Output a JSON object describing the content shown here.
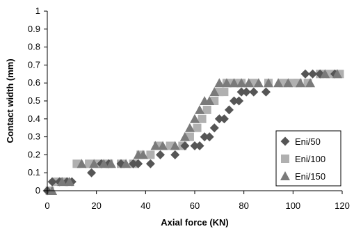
{
  "chart_data": {
    "type": "scatter",
    "xlabel": "Axial force (KN)",
    "ylabel": "Contact width (mm)",
    "xlim": [
      0,
      120
    ],
    "ylim": [
      0,
      1
    ],
    "xticks": [
      0,
      20,
      40,
      60,
      80,
      100,
      120
    ],
    "yticks": [
      0,
      0.1,
      0.2,
      0.3,
      0.4,
      0.5,
      0.6,
      0.7,
      0.8,
      0.9,
      1
    ],
    "xtick_labels": [
      "0",
      "20",
      "40",
      "60",
      "80",
      "100",
      "120"
    ],
    "ytick_labels": [
      "0",
      "0.1",
      "0.2",
      "0.3",
      "0.4",
      "0.5",
      "0.6",
      "0.7",
      "0.8",
      "0.9",
      "1"
    ],
    "grid": false,
    "legend_position": "right",
    "series": [
      {
        "name": "Eni/50",
        "marker": "diamond",
        "color": "#555555",
        "points": [
          [
            0,
            0
          ],
          [
            2,
            0.05
          ],
          [
            5,
            0.05
          ],
          [
            8,
            0.05
          ],
          [
            10,
            0.05
          ],
          [
            18,
            0.1
          ],
          [
            22,
            0.15
          ],
          [
            25,
            0.15
          ],
          [
            30,
            0.15
          ],
          [
            35,
            0.15
          ],
          [
            37,
            0.15
          ],
          [
            42,
            0.15
          ],
          [
            46,
            0.2
          ],
          [
            52,
            0.2
          ],
          [
            56,
            0.25
          ],
          [
            60,
            0.25
          ],
          [
            62,
            0.25
          ],
          [
            64,
            0.3
          ],
          [
            66,
            0.3
          ],
          [
            68,
            0.35
          ],
          [
            70,
            0.4
          ],
          [
            72,
            0.4
          ],
          [
            74,
            0.45
          ],
          [
            76,
            0.5
          ],
          [
            78,
            0.5
          ],
          [
            79,
            0.55
          ],
          [
            81,
            0.55
          ],
          [
            84,
            0.55
          ],
          [
            89,
            0.55
          ],
          [
            105,
            0.65
          ],
          [
            108,
            0.65
          ],
          [
            111,
            0.65
          ],
          [
            117,
            0.65
          ]
        ]
      },
      {
        "name": "Eni/100",
        "marker": "square",
        "color": "#b0b0b0",
        "points": [
          [
            1,
            0
          ],
          [
            4,
            0.05
          ],
          [
            7,
            0.05
          ],
          [
            12,
            0.15
          ],
          [
            17,
            0.15
          ],
          [
            21,
            0.15
          ],
          [
            25,
            0.15
          ],
          [
            30,
            0.15
          ],
          [
            35,
            0.15
          ],
          [
            38,
            0.2
          ],
          [
            42,
            0.2
          ],
          [
            45,
            0.25
          ],
          [
            50,
            0.25
          ],
          [
            55,
            0.25
          ],
          [
            58,
            0.3
          ],
          [
            61,
            0.35
          ],
          [
            63,
            0.4
          ],
          [
            65,
            0.45
          ],
          [
            68,
            0.5
          ],
          [
            70,
            0.55
          ],
          [
            72,
            0.55
          ],
          [
            73,
            0.6
          ],
          [
            76,
            0.6
          ],
          [
            79,
            0.6
          ],
          [
            84,
            0.6
          ],
          [
            90,
            0.6
          ],
          [
            96,
            0.6
          ],
          [
            100,
            0.6
          ],
          [
            102,
            0.6
          ],
          [
            106,
            0.6
          ],
          [
            111,
            0.65
          ],
          [
            115,
            0.65
          ],
          [
            119,
            0.65
          ]
        ]
      },
      {
        "name": "Eni/150",
        "marker": "triangle",
        "color": "#7a7a7a",
        "points": [
          [
            2,
            0
          ],
          [
            6,
            0.05
          ],
          [
            9,
            0.05
          ],
          [
            14,
            0.15
          ],
          [
            19,
            0.15
          ],
          [
            23,
            0.15
          ],
          [
            26,
            0.15
          ],
          [
            32,
            0.15
          ],
          [
            37,
            0.2
          ],
          [
            39,
            0.2
          ],
          [
            44,
            0.25
          ],
          [
            47,
            0.25
          ],
          [
            52,
            0.25
          ],
          [
            56,
            0.3
          ],
          [
            58,
            0.35
          ],
          [
            60,
            0.4
          ],
          [
            62,
            0.45
          ],
          [
            64,
            0.5
          ],
          [
            66,
            0.5
          ],
          [
            68,
            0.55
          ],
          [
            70,
            0.6
          ],
          [
            73,
            0.6
          ],
          [
            76,
            0.6
          ],
          [
            79,
            0.6
          ],
          [
            82,
            0.6
          ],
          [
            86,
            0.6
          ],
          [
            90,
            0.6
          ],
          [
            94,
            0.6
          ],
          [
            98,
            0.6
          ],
          [
            103,
            0.6
          ],
          [
            107,
            0.6
          ],
          [
            113,
            0.65
          ],
          [
            118,
            0.65
          ]
        ]
      }
    ]
  }
}
